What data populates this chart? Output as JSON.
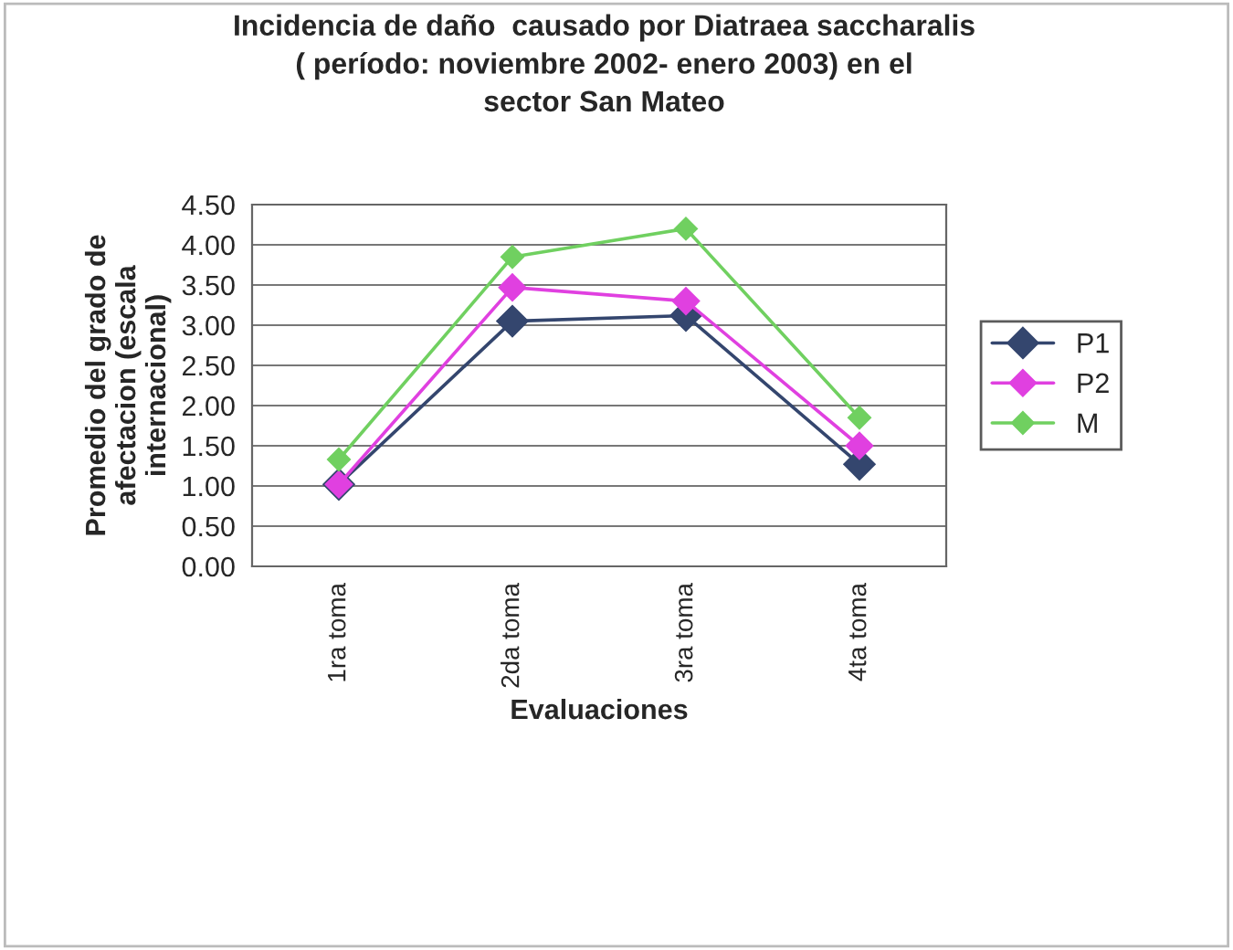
{
  "chart_data": {
    "type": "line",
    "title": "Incidencia de daño  causado por Diatraea saccharalis\n( período: noviembre 2002- enero 2003) en el\nsector San Mateo",
    "xlabel": "Evaluaciones",
    "ylabel": "Promedio del grado de\nafectacion (escala\ninternacional)",
    "categories": [
      "1ra toma",
      "2da toma",
      "3ra toma",
      "4ta toma"
    ],
    "series": [
      {
        "name": "P1",
        "color": "#34466e",
        "values": [
          1.02,
          3.05,
          3.12,
          1.27
        ]
      },
      {
        "name": "P2",
        "color": "#e040e0",
        "values": [
          1.02,
          3.47,
          3.3,
          1.5
        ]
      },
      {
        "name": "M",
        "color": "#70d060",
        "values": [
          1.33,
          3.85,
          4.2,
          1.85
        ]
      }
    ],
    "ylim": [
      0,
      4.5
    ],
    "yticks": [
      {
        "value": 0,
        "label": "0.00"
      },
      {
        "value": 0.5,
        "label": "0.50"
      },
      {
        "value": 1,
        "label": "1.00"
      },
      {
        "value": 1.5,
        "label": "1.50"
      },
      {
        "value": 2,
        "label": "2.00"
      },
      {
        "value": 2.5,
        "label": "2.50"
      },
      {
        "value": 3,
        "label": "3.00"
      },
      {
        "value": 3.5,
        "label": "3.50"
      },
      {
        "value": 4,
        "label": "4.00"
      },
      {
        "value": 4.5,
        "label": "4.50"
      }
    ],
    "grid": "y",
    "legend": "right",
    "marker": "diamond",
    "line_style": "solid"
  }
}
